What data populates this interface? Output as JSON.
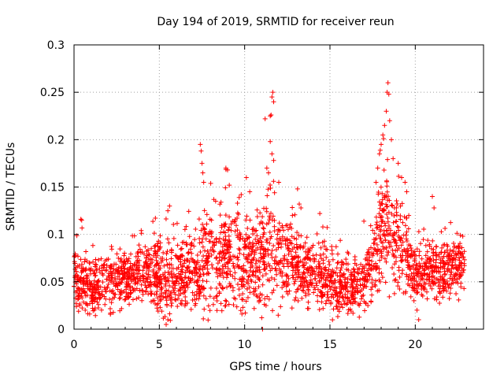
{
  "chart_data": {
    "type": "scatter",
    "title": "Day 194 of 2019, SRMTID for receiver reun",
    "xlabel": "GPS time / hours",
    "ylabel": "SRMTID / TECUs",
    "xlim": [
      0,
      24
    ],
    "ylim": [
      0,
      0.3
    ],
    "xticks": [
      0,
      5,
      10,
      15,
      20
    ],
    "xtick_labels": [
      "0",
      "5",
      "10",
      "15",
      "20"
    ],
    "yticks": [
      0,
      0.05,
      0.1,
      0.15,
      0.2,
      0.25,
      0.3
    ],
    "ytick_labels": [
      "0",
      "0.05",
      "0.1",
      "0.15",
      "0.2",
      "0.25",
      "0.3"
    ],
    "grid": true,
    "marker": "plus",
    "color": "#ff0000",
    "series": [
      {
        "name": "SRMTID",
        "profile_hours": [
          0,
          0.3,
          0.7,
          1.0,
          1.5,
          2.0,
          2.5,
          3.0,
          3.5,
          4.0,
          4.5,
          5.0,
          5.5,
          6.0,
          6.5,
          7.0,
          7.5,
          8.0,
          8.5,
          9.0,
          9.5,
          10.0,
          10.5,
          11.0,
          11.5,
          12.0,
          12.5,
          13.0,
          13.5,
          14.0,
          14.5,
          15.0,
          15.5,
          16.0,
          16.5,
          17.0,
          17.5,
          18.0,
          18.3,
          18.6,
          19.0,
          19.5,
          20.0,
          20.5,
          21.0,
          21.5,
          22.0,
          22.5,
          22.9
        ],
        "profile_median": [
          0.055,
          0.05,
          0.045,
          0.04,
          0.045,
          0.05,
          0.05,
          0.055,
          0.055,
          0.06,
          0.065,
          0.055,
          0.05,
          0.05,
          0.055,
          0.065,
          0.07,
          0.075,
          0.075,
          0.08,
          0.075,
          0.075,
          0.075,
          0.075,
          0.085,
          0.08,
          0.07,
          0.065,
          0.06,
          0.06,
          0.055,
          0.05,
          0.045,
          0.045,
          0.045,
          0.05,
          0.07,
          0.1,
          0.115,
          0.1,
          0.09,
          0.08,
          0.06,
          0.06,
          0.06,
          0.06,
          0.06,
          0.065,
          0.065
        ],
        "profile_spread": [
          0.015,
          0.015,
          0.015,
          0.015,
          0.015,
          0.015,
          0.015,
          0.015,
          0.015,
          0.015,
          0.02,
          0.02,
          0.02,
          0.015,
          0.02,
          0.02,
          0.025,
          0.025,
          0.025,
          0.025,
          0.025,
          0.025,
          0.02,
          0.025,
          0.03,
          0.025,
          0.02,
          0.02,
          0.015,
          0.015,
          0.015,
          0.015,
          0.015,
          0.015,
          0.015,
          0.015,
          0.02,
          0.03,
          0.035,
          0.03,
          0.025,
          0.02,
          0.015,
          0.015,
          0.015,
          0.015,
          0.015,
          0.015,
          0.015
        ],
        "outliers": [
          [
            0.4,
            0.116
          ],
          [
            0.45,
            0.115
          ],
          [
            5.5,
            0.125
          ],
          [
            5.6,
            0.13
          ],
          [
            7.4,
            0.195
          ],
          [
            7.45,
            0.188
          ],
          [
            7.5,
            0.175
          ],
          [
            7.55,
            0.165
          ],
          [
            7.6,
            0.155
          ],
          [
            8.9,
            0.17
          ],
          [
            9.0,
            0.168
          ],
          [
            9.1,
            0.152
          ],
          [
            10.1,
            0.16
          ],
          [
            10.3,
            0.145
          ],
          [
            11.2,
            0.222
          ],
          [
            11.5,
            0.225
          ],
          [
            11.55,
            0.226
          ],
          [
            11.6,
            0.245
          ],
          [
            11.65,
            0.25
          ],
          [
            11.7,
            0.24
          ],
          [
            11.5,
            0.198
          ],
          [
            11.6,
            0.185
          ],
          [
            11.7,
            0.178
          ],
          [
            11.3,
            0.17
          ],
          [
            11.4,
            0.165
          ],
          [
            12.0,
            0.155
          ],
          [
            13.1,
            0.148
          ],
          [
            13.2,
            0.132
          ],
          [
            13.3,
            0.128
          ],
          [
            17.7,
            0.155
          ],
          [
            17.8,
            0.17
          ],
          [
            17.9,
            0.185
          ],
          [
            18.0,
            0.195
          ],
          [
            18.1,
            0.205
          ],
          [
            18.2,
            0.215
          ],
          [
            18.3,
            0.23
          ],
          [
            18.35,
            0.25
          ],
          [
            18.4,
            0.26
          ],
          [
            18.45,
            0.248
          ],
          [
            18.5,
            0.22
          ],
          [
            18.6,
            0.2
          ],
          [
            18.7,
            0.18
          ],
          [
            19.0,
            0.175
          ],
          [
            19.2,
            0.16
          ],
          [
            19.4,
            0.155
          ],
          [
            19.5,
            0.145
          ],
          [
            21.0,
            0.14
          ],
          [
            21.1,
            0.128
          ],
          [
            20.1,
            0.02
          ],
          [
            20.2,
            0.01
          ],
          [
            11.0,
            0.012
          ],
          [
            11.05,
            0.0
          ],
          [
            5.4,
            0.005
          ],
          [
            5.5,
            0.01
          ],
          [
            12.8,
            0.12
          ],
          [
            8.3,
            0.135
          ],
          [
            9.8,
            0.142
          ]
        ]
      }
    ]
  }
}
